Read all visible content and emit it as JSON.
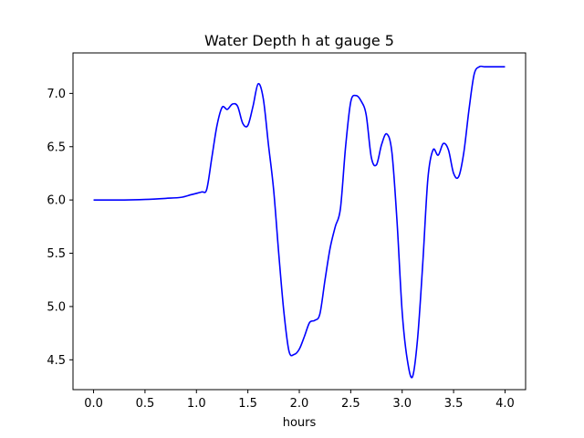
{
  "chart_data": {
    "type": "line",
    "title": "Water Depth h at gauge 5",
    "xlabel": "hours",
    "ylabel": "",
    "xlim": [
      -0.2,
      4.2
    ],
    "ylim": [
      4.22,
      7.38
    ],
    "grid": false,
    "xticks": [
      0.0,
      0.5,
      1.0,
      1.5,
      2.0,
      2.5,
      3.0,
      3.5,
      4.0
    ],
    "xtick_labels": [
      "0.0",
      "0.5",
      "1.0",
      "1.5",
      "2.0",
      "2.5",
      "3.0",
      "3.5",
      "4.0"
    ],
    "yticks": [
      4.5,
      5.0,
      5.5,
      6.0,
      6.5,
      7.0
    ],
    "ytick_labels": [
      "4.5",
      "5.0",
      "5.5",
      "6.0",
      "6.5",
      "7.0"
    ],
    "series": [
      {
        "color": "#0000ff",
        "x": [
          0.0,
          0.3,
          0.5,
          0.7,
          0.85,
          0.95,
          1.05,
          1.1,
          1.15,
          1.2,
          1.25,
          1.3,
          1.35,
          1.4,
          1.45,
          1.5,
          1.55,
          1.6,
          1.65,
          1.7,
          1.75,
          1.8,
          1.85,
          1.9,
          1.95,
          2.0,
          2.05,
          2.1,
          2.15,
          2.2,
          2.25,
          2.3,
          2.35,
          2.4,
          2.45,
          2.5,
          2.55,
          2.6,
          2.65,
          2.7,
          2.75,
          2.8,
          2.85,
          2.9,
          2.95,
          3.0,
          3.05,
          3.1,
          3.15,
          3.2,
          3.25,
          3.3,
          3.35,
          3.4,
          3.45,
          3.5,
          3.55,
          3.6,
          3.65,
          3.7,
          3.75,
          3.8,
          3.85,
          3.9,
          3.95,
          4.0
        ],
        "y": [
          6.0,
          6.0,
          6.005,
          6.015,
          6.025,
          6.05,
          6.075,
          6.1,
          6.4,
          6.7,
          6.87,
          6.85,
          6.9,
          6.88,
          6.72,
          6.7,
          6.88,
          7.09,
          6.95,
          6.52,
          6.1,
          5.5,
          4.95,
          4.58,
          4.55,
          4.6,
          4.72,
          4.85,
          4.87,
          4.93,
          5.25,
          5.55,
          5.75,
          5.92,
          6.5,
          6.92,
          6.98,
          6.93,
          6.8,
          6.4,
          6.33,
          6.52,
          6.62,
          6.45,
          5.8,
          4.95,
          4.5,
          4.34,
          4.7,
          5.4,
          6.2,
          6.47,
          6.42,
          6.53,
          6.47,
          6.25,
          6.22,
          6.45,
          6.85,
          7.18,
          7.25,
          7.25,
          7.25,
          7.25,
          7.25,
          7.25
        ]
      }
    ]
  }
}
